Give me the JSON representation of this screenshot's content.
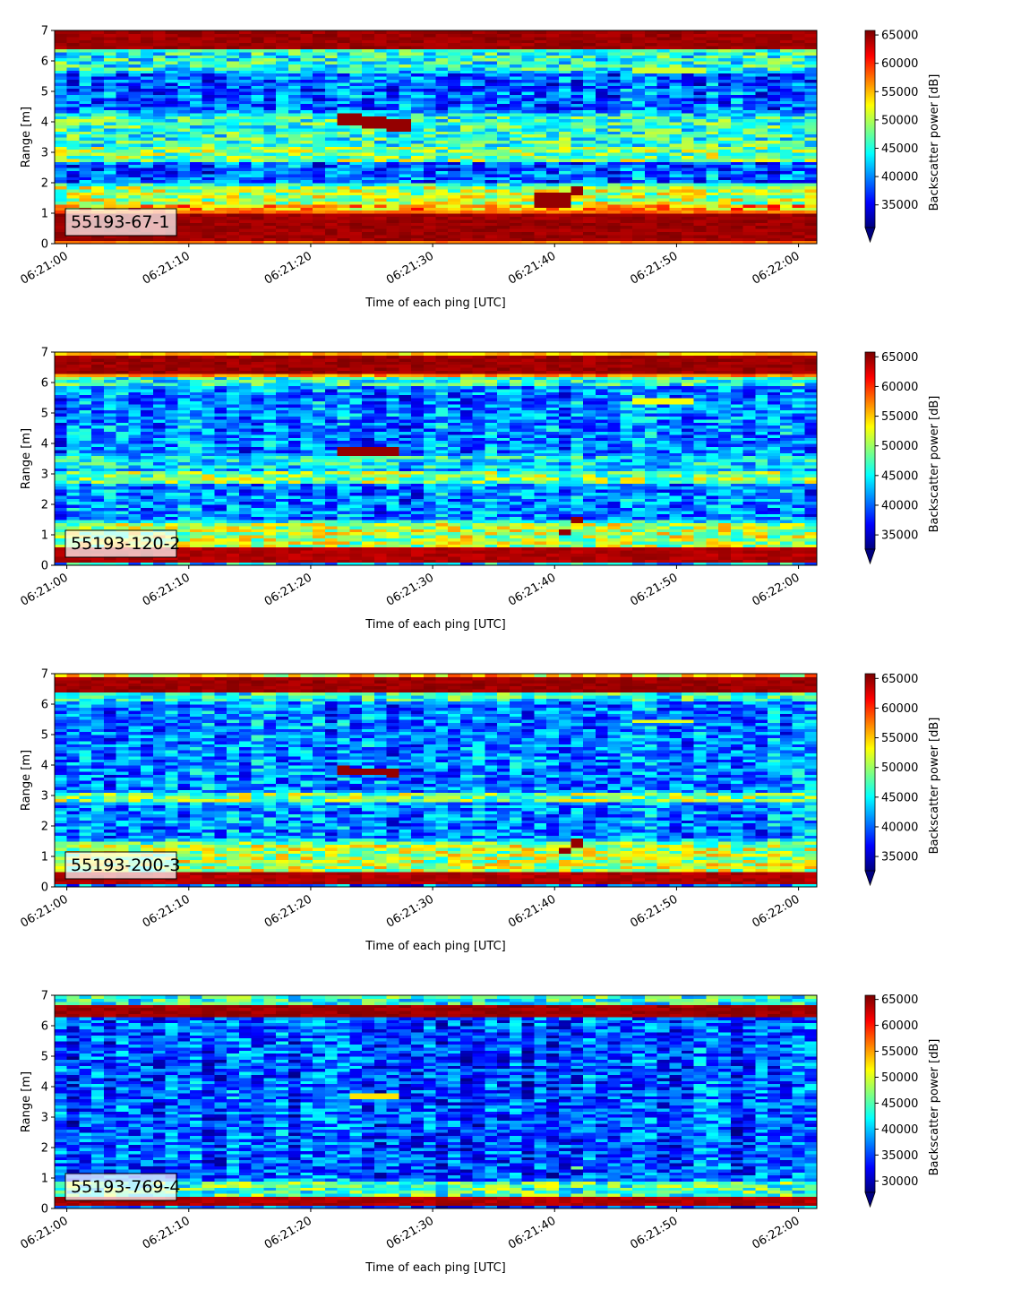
{
  "chart_data": [
    {
      "type": "heatmap",
      "tag": "55193-67-1",
      "xlabel": "Time of each ping [UTC]",
      "ylabel": "Range [m]",
      "x_ticks": [
        "06:21:00",
        "06:21:10",
        "06:21:20",
        "06:21:30",
        "06:21:40",
        "06:21:50",
        "06:22:00"
      ],
      "x_range_s": [
        -1,
        61.5
      ],
      "y_ticks": [
        0,
        1,
        2,
        3,
        4,
        5,
        6,
        7
      ],
      "ylim": [
        0,
        7
      ],
      "colormap": "jet",
      "colorbar_label": "Backscatter power [dB]",
      "colorbar_ticks": [
        35000,
        40000,
        45000,
        50000,
        55000,
        60000,
        65000
      ],
      "clim": [
        31000,
        65800
      ],
      "colorbar_extend": "min",
      "bands": [
        {
          "center_m": 0.55,
          "half_width_m": 0.45,
          "level": 0.97
        },
        {
          "center_m": 1.2,
          "half_width_m": 0.12,
          "level": 0.7
        },
        {
          "center_m": 1.6,
          "half_width_m": 0.3,
          "level": 0.55
        },
        {
          "center_m": 2.95,
          "half_width_m": 0.2,
          "level": 0.5
        },
        {
          "center_m": 3.7,
          "half_width_m": 0.5,
          "level": 0.42
        },
        {
          "center_m": 6.0,
          "half_width_m": 0.3,
          "level": 0.4
        },
        {
          "center_m": 6.75,
          "half_width_m": 0.3,
          "level": 0.97
        }
      ],
      "background_level": 0.22,
      "targets": [
        {
          "t0_s": 21.8,
          "t1_s": 28.0,
          "r0_m": 4.15,
          "r1_m": 3.85,
          "thickness_m": 0.4
        },
        {
          "t0_s": 38.8,
          "t1_s": 41.2,
          "r0_m": 1.45,
          "r1_m": 1.45,
          "thickness_m": 0.45
        },
        {
          "t0_s": 41.5,
          "t1_s": 42.5,
          "r0_m": 1.75,
          "r1_m": 1.75,
          "thickness_m": 0.35
        },
        {
          "t0_s": 46.5,
          "t1_s": 52.0,
          "r0_m": 5.7,
          "r1_m": 5.7,
          "thickness_m": 0.3,
          "level": 0.58
        }
      ]
    },
    {
      "type": "heatmap",
      "tag": "55193-120-2",
      "xlabel": "Time of each ping [UTC]",
      "ylabel": "Range [m]",
      "x_ticks": [
        "06:21:00",
        "06:21:10",
        "06:21:20",
        "06:21:30",
        "06:21:40",
        "06:21:50",
        "06:22:00"
      ],
      "x_range_s": [
        -1,
        61.5
      ],
      "y_ticks": [
        0,
        1,
        2,
        3,
        4,
        5,
        6,
        7
      ],
      "ylim": [
        0,
        7
      ],
      "colormap": "jet",
      "colorbar_label": "Backscatter power [dB]",
      "colorbar_ticks": [
        35000,
        40000,
        45000,
        50000,
        55000,
        60000,
        65000
      ],
      "clim": [
        32600,
        65800
      ],
      "colorbar_extend": "min",
      "bands": [
        {
          "center_m": 0.35,
          "half_width_m": 0.22,
          "level": 0.95
        },
        {
          "center_m": 0.9,
          "half_width_m": 0.45,
          "level": 0.55
        },
        {
          "center_m": 2.9,
          "half_width_m": 0.15,
          "level": 0.5
        },
        {
          "center_m": 3.4,
          "half_width_m": 0.2,
          "level": 0.35
        },
        {
          "center_m": 6.1,
          "half_width_m": 0.15,
          "level": 0.4
        },
        {
          "center_m": 6.6,
          "half_width_m": 0.3,
          "level": 0.97
        }
      ],
      "background_level": 0.25,
      "targets": [
        {
          "t0_s": 22.5,
          "t1_s": 27.5,
          "r0_m": 3.8,
          "r1_m": 3.75,
          "thickness_m": 0.3
        },
        {
          "t0_s": 40.5,
          "t1_s": 41.5,
          "r0_m": 1.15,
          "r1_m": 1.15,
          "thickness_m": 0.2
        },
        {
          "t0_s": 41.5,
          "t1_s": 42.5,
          "r0_m": 1.5,
          "r1_m": 1.5,
          "thickness_m": 0.2
        },
        {
          "t0_s": 46.0,
          "t1_s": 51.0,
          "r0_m": 5.4,
          "r1_m": 5.4,
          "thickness_m": 0.2,
          "level": 0.62
        }
      ]
    },
    {
      "type": "heatmap",
      "tag": "55193-200-3",
      "xlabel": "Time of each ping [UTC]",
      "ylabel": "Range [m]",
      "x_ticks": [
        "06:21:00",
        "06:21:10",
        "06:21:20",
        "06:21:30",
        "06:21:40",
        "06:21:50",
        "06:22:00"
      ],
      "x_range_s": [
        -1,
        61.5
      ],
      "y_ticks": [
        0,
        1,
        2,
        3,
        4,
        5,
        6,
        7
      ],
      "ylim": [
        0,
        7
      ],
      "colormap": "jet",
      "colorbar_label": "Backscatter power [dB]",
      "colorbar_ticks": [
        35000,
        40000,
        45000,
        50000,
        55000,
        60000,
        65000
      ],
      "clim": [
        32600,
        65800
      ],
      "colorbar_extend": "min",
      "bands": [
        {
          "center_m": 0.3,
          "half_width_m": 0.15,
          "level": 0.95
        },
        {
          "center_m": 0.9,
          "half_width_m": 0.5,
          "level": 0.55
        },
        {
          "center_m": 2.95,
          "half_width_m": 0.15,
          "level": 0.5
        },
        {
          "center_m": 6.3,
          "half_width_m": 0.15,
          "level": 0.4
        },
        {
          "center_m": 6.65,
          "half_width_m": 0.2,
          "level": 0.97
        },
        {
          "center_m": 6.95,
          "half_width_m": 0.1,
          "level": 0.65
        }
      ],
      "background_level": 0.25,
      "targets": [
        {
          "t0_s": 22.5,
          "t1_s": 27.0,
          "r0_m": 3.85,
          "r1_m": 3.75,
          "thickness_m": 0.25
        },
        {
          "t0_s": 40.5,
          "t1_s": 41.5,
          "r0_m": 1.2,
          "r1_m": 1.2,
          "thickness_m": 0.2
        },
        {
          "t0_s": 41.5,
          "t1_s": 42.5,
          "r0_m": 1.45,
          "r1_m": 1.45,
          "thickness_m": 0.2
        },
        {
          "t0_s": 46.0,
          "t1_s": 51.5,
          "r0_m": 5.45,
          "r1_m": 5.45,
          "thickness_m": 0.15,
          "level": 0.6
        }
      ]
    },
    {
      "type": "heatmap",
      "tag": "55193-769-4",
      "xlabel": "Time of each ping [UTC]",
      "ylabel": "Range [m]",
      "x_ticks": [
        "06:21:00",
        "06:21:10",
        "06:21:20",
        "06:21:30",
        "06:21:40",
        "06:21:50",
        "06:22:00"
      ],
      "x_range_s": [
        -1,
        61.5
      ],
      "y_ticks": [
        0,
        1,
        2,
        3,
        4,
        5,
        6,
        7
      ],
      "ylim": [
        0,
        7
      ],
      "colormap": "jet",
      "colorbar_label": "Backscatter power [dB]",
      "colorbar_ticks": [
        30000,
        35000,
        40000,
        45000,
        50000,
        55000,
        60000,
        65000
      ],
      "clim": [
        27800,
        65800
      ],
      "colorbar_extend": "min",
      "bands": [
        {
          "center_m": 0.25,
          "half_width_m": 0.1,
          "level": 0.95
        },
        {
          "center_m": 0.55,
          "half_width_m": 0.3,
          "level": 0.45
        },
        {
          "center_m": 6.5,
          "half_width_m": 0.15,
          "level": 0.97
        },
        {
          "center_m": 6.85,
          "half_width_m": 0.1,
          "level": 0.4
        }
      ],
      "background_level": 0.2,
      "targets": [
        {
          "t0_s": 23.5,
          "t1_s": 27.5,
          "r0_m": 3.7,
          "r1_m": 3.7,
          "thickness_m": 0.2,
          "level": 0.65
        },
        {
          "t0_s": 41.5,
          "t1_s": 42.5,
          "r0_m": 1.35,
          "r1_m": 1.35,
          "thickness_m": 0.15,
          "level": 0.5
        }
      ]
    }
  ]
}
